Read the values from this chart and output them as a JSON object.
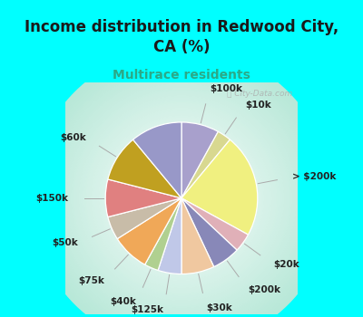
{
  "title": "Income distribution in Redwood City,\nCA (%)",
  "subtitle": "Multirace residents",
  "bg_color": "#00FFFF",
  "chart_bg_center": "#ffffff",
  "chart_bg_edge": "#b8e8d8",
  "slices": [
    {
      "label": "$100k",
      "value": 8,
      "color": "#a8a0cc"
    },
    {
      "label": "$10k",
      "value": 3,
      "color": "#d8d890"
    },
    {
      "label": "> $200k",
      "value": 22,
      "color": "#f0f080"
    },
    {
      "label": "$20k",
      "value": 4,
      "color": "#e0b0b8"
    },
    {
      "label": "$200k",
      "value": 6,
      "color": "#8888b8"
    },
    {
      "label": "$30k",
      "value": 7,
      "color": "#f0c8a0"
    },
    {
      "label": "$125k",
      "value": 5,
      "color": "#c0c8e8"
    },
    {
      "label": "$40k",
      "value": 3,
      "color": "#b0d090"
    },
    {
      "label": "$75k",
      "value": 8,
      "color": "#f0a858"
    },
    {
      "label": "$50k",
      "value": 5,
      "color": "#c8bca8"
    },
    {
      "label": "$150k",
      "value": 8,
      "color": "#e08080"
    },
    {
      "label": "$60k",
      "value": 10,
      "color": "#c0a020"
    },
    {
      "label": "",
      "value": 11,
      "color": "#9898c8"
    }
  ],
  "title_fontsize": 12,
  "subtitle_fontsize": 10,
  "label_fontsize": 7.5
}
